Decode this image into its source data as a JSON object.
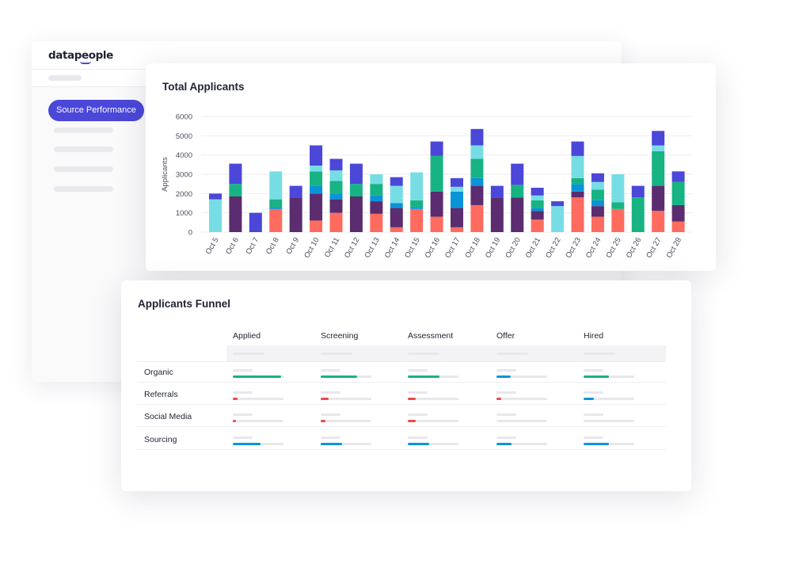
{
  "app": {
    "logo": "datapeople",
    "nav_item": "Source Performance"
  },
  "total_applicants": {
    "title": "Total Applicants",
    "chart_data": {
      "type": "bar",
      "stacked": true,
      "ylabel": "Applicants",
      "ylim": [
        0,
        6000
      ],
      "yticks": [
        0,
        1000,
        2000,
        3000,
        4000,
        5000,
        6000
      ],
      "categories": [
        "Oct 5",
        "Oct 6",
        "Oct 7",
        "Oct 8",
        "Oct 9",
        "Oct 10",
        "Oct 11",
        "Oct 12",
        "Oct 13",
        "Oct 14",
        "Oct 15",
        "Oct 16",
        "Oct 17",
        "Oct 18",
        "Oct 19",
        "Oct 20",
        "Oct 21",
        "Oct 22",
        "Oct 23",
        "Oct 24",
        "Oct 25",
        "Oct 26",
        "Oct 27",
        "Oct 28"
      ],
      "series": [
        {
          "color": "#ff6b5e",
          "values": [
            0,
            0,
            0,
            1200,
            0,
            600,
            1000,
            0,
            950,
            250,
            1200,
            800,
            250,
            1400,
            0,
            0,
            650,
            0,
            1800,
            800,
            1200,
            0,
            1100,
            550
          ]
        },
        {
          "color": "#5b2c6f",
          "values": [
            0,
            1850,
            0,
            0,
            1800,
            1400,
            700,
            1850,
            650,
            1000,
            0,
            1300,
            1000,
            1000,
            1800,
            1800,
            450,
            0,
            300,
            550,
            0,
            0,
            1300,
            850
          ]
        },
        {
          "color": "#0b93d8",
          "values": [
            0,
            0,
            0,
            100,
            0,
            400,
            300,
            0,
            300,
            250,
            100,
            0,
            850,
            400,
            0,
            0,
            150,
            0,
            400,
            300,
            0,
            0,
            0,
            0
          ]
        },
        {
          "color": "#17b383",
          "values": [
            0,
            650,
            0,
            400,
            0,
            750,
            650,
            650,
            600,
            0,
            350,
            1850,
            0,
            1000,
            0,
            650,
            400,
            0,
            300,
            550,
            350,
            1800,
            1800,
            1200
          ]
        },
        {
          "color": "#77dde4",
          "values": [
            1700,
            0,
            0,
            1450,
            0,
            300,
            550,
            0,
            500,
            900,
            1450,
            0,
            250,
            700,
            0,
            0,
            250,
            1350,
            1150,
            400,
            1450,
            0,
            300,
            0
          ]
        },
        {
          "color": "#4b47d9",
          "values": [
            300,
            1050,
            1000,
            0,
            600,
            1050,
            600,
            1050,
            0,
            450,
            0,
            750,
            450,
            850,
            600,
            1100,
            400,
            250,
            750,
            450,
            0,
            600,
            750,
            550
          ]
        }
      ]
    }
  },
  "funnel": {
    "title": "Applicants Funnel",
    "columns": [
      "Applied",
      "Screening",
      "Assessment",
      "Offer",
      "Hired"
    ],
    "rows": [
      {
        "label": "Organic",
        "levels": [
          0.95,
          0.72,
          0.62,
          0.28,
          0.5
        ],
        "colors": [
          "#17b383",
          "#17b383",
          "#17b383",
          "#0b93d8",
          "#17b383"
        ]
      },
      {
        "label": "Referrals",
        "levels": [
          0.1,
          0.15,
          0.15,
          0.1,
          0.2
        ],
        "colors": [
          "#e84a4a",
          "#e84a4a",
          "#e84a4a",
          "#e84a4a",
          "#0b93d8"
        ]
      },
      {
        "label": "Social Media",
        "levels": [
          0.06,
          0.1,
          0.15,
          0.0,
          0.0
        ],
        "colors": [
          "#e84a4a",
          "#e84a4a",
          "#e84a4a",
          "#e84a4a",
          "#e84a4a"
        ]
      },
      {
        "label": "Sourcing",
        "levels": [
          0.55,
          0.42,
          0.42,
          0.3,
          0.5
        ],
        "colors": [
          "#0b93d8",
          "#0b93d8",
          "#0b93d8",
          "#0b93d8",
          "#0b93d8"
        ]
      }
    ]
  }
}
